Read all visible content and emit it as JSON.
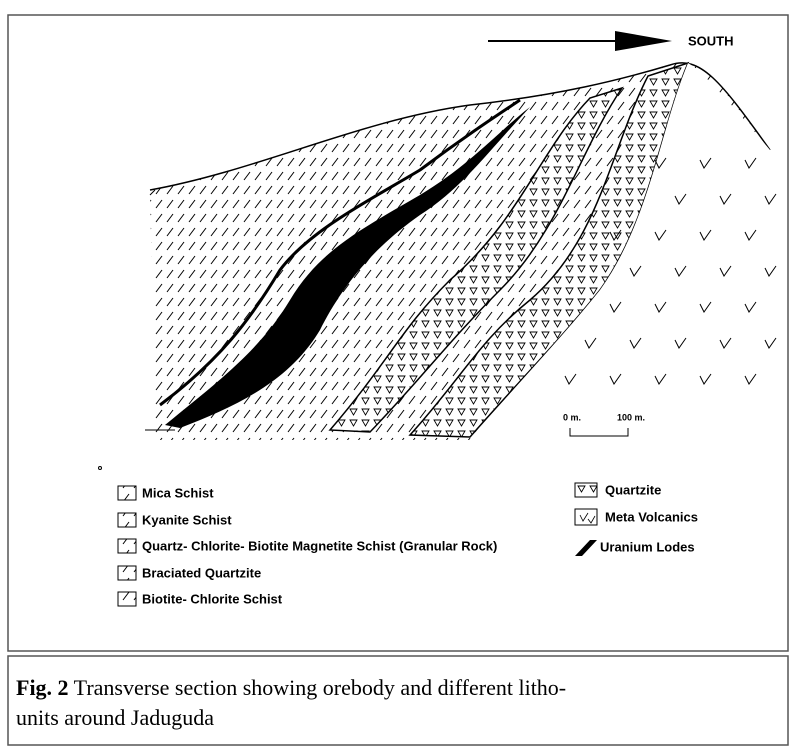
{
  "diagram": {
    "direction_label": "SOUTH",
    "scale": {
      "start": "0 m.",
      "end": "100 m."
    },
    "legend": {
      "left": [
        "Mica Schist",
        "Kyanite Schist",
        "Quartz- Chlorite- Biotite Magnetite Schist (Granular Rock)",
        "Braciated Quartzite",
        "Biotite- Chlorite Schist"
      ],
      "right": [
        "Quartzite",
        "Meta Volcanics",
        "Uranium Lodes"
      ]
    },
    "caption": {
      "label": "Fig. 2",
      "lines": [
        "Transverse section showing orebody and different litho-",
        "units around Jaduguda"
      ]
    }
  }
}
